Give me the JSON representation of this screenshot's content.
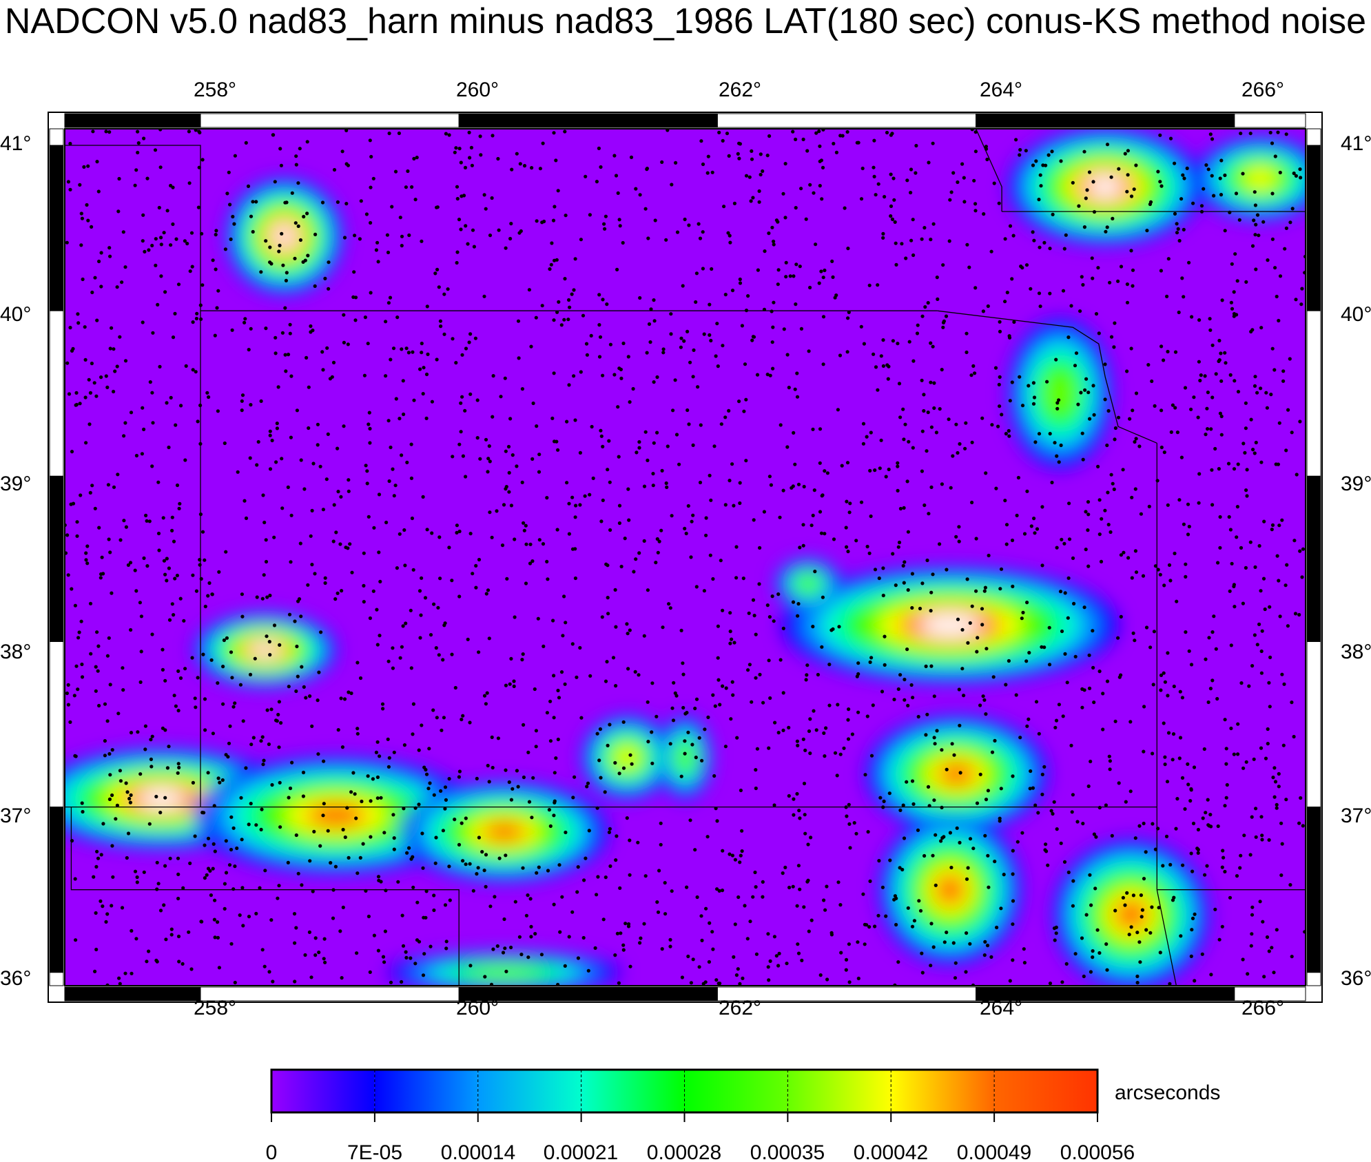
{
  "title": "NADCON v5.0 nad83_harn minus nad83_1986 LAT(180 sec) conus-KS method noise",
  "map": {
    "lon_range": [
      256.95,
      266.55
    ],
    "lat_range": [
      35.92,
      41.1
    ],
    "lon_ticks": [
      "258°",
      "260°",
      "262°",
      "264°",
      "266°"
    ],
    "lat_ticks": [
      "41°",
      "40°",
      "39°",
      "38°",
      "37°",
      "36°"
    ],
    "background_color": "#9900ff",
    "hotspots": [
      {
        "lon": 258.65,
        "lat": 40.45,
        "rx": 0.45,
        "ry": 0.35,
        "level": 8
      },
      {
        "lon": 258.5,
        "lat": 37.95,
        "rx": 0.55,
        "ry": 0.22,
        "level": 8
      },
      {
        "lon": 257.7,
        "lat": 37.05,
        "rx": 1.0,
        "ry": 0.3,
        "level": 8
      },
      {
        "lon": 259.05,
        "lat": 36.95,
        "rx": 1.1,
        "ry": 0.35,
        "level": 7
      },
      {
        "lon": 260.35,
        "lat": 36.85,
        "rx": 0.8,
        "ry": 0.3,
        "level": 7
      },
      {
        "lon": 261.3,
        "lat": 37.3,
        "rx": 0.35,
        "ry": 0.25,
        "level": 6
      },
      {
        "lon": 261.75,
        "lat": 37.3,
        "rx": 0.2,
        "ry": 0.25,
        "level": 5
      },
      {
        "lon": 263.8,
        "lat": 38.1,
        "rx": 1.3,
        "ry": 0.35,
        "level": 8
      },
      {
        "lon": 263.85,
        "lat": 37.2,
        "rx": 0.7,
        "ry": 0.35,
        "level": 7
      },
      {
        "lon": 263.8,
        "lat": 36.5,
        "rx": 0.55,
        "ry": 0.45,
        "level": 7
      },
      {
        "lon": 265.2,
        "lat": 36.35,
        "rx": 0.6,
        "ry": 0.45,
        "level": 7
      },
      {
        "lon": 265.0,
        "lat": 40.75,
        "rx": 0.75,
        "ry": 0.35,
        "level": 8
      },
      {
        "lon": 266.2,
        "lat": 40.8,
        "rx": 0.5,
        "ry": 0.25,
        "level": 6
      },
      {
        "lon": 264.65,
        "lat": 39.5,
        "rx": 0.4,
        "ry": 0.45,
        "level": 5
      },
      {
        "lon": 262.7,
        "lat": 38.35,
        "rx": 0.25,
        "ry": 0.15,
        "level": 5
      },
      {
        "lon": 260.35,
        "lat": 36.0,
        "rx": 0.9,
        "ry": 0.12,
        "level": 5
      }
    ],
    "borders": [
      {
        "name": "Kansas-Colorado",
        "points": [
          [
            258.0,
            40.0
          ],
          [
            263.7,
            40.0
          ]
        ]
      },
      {
        "name": "Kansas-Oklahoma",
        "points": [
          [
            256.95,
            37.0
          ],
          [
            265.4,
            37.0
          ]
        ]
      },
      {
        "name": "Kansas-Missouri",
        "points": [
          [
            265.4,
            36.5
          ],
          [
            265.4,
            39.2
          ]
        ]
      },
      {
        "name": "Missouri-Oklahoma",
        "points": [
          [
            265.4,
            36.5
          ],
          [
            266.55,
            36.5
          ]
        ]
      },
      {
        "name": "Nebraska-Colorado",
        "points": [
          [
            256.95,
            41.0
          ],
          [
            258.0,
            41.0
          ],
          [
            258.0,
            37.0
          ]
        ]
      },
      {
        "name": "Iowa-Missouri",
        "points": [
          [
            264.2,
            40.6
          ],
          [
            266.55,
            40.6
          ]
        ]
      },
      {
        "name": "Missouri River",
        "points": [
          [
            264.2,
            40.6
          ],
          [
            264.2,
            40.75
          ],
          [
            264.0,
            41.1
          ]
        ]
      },
      {
        "name": "Missouri River KS",
        "points": [
          [
            263.7,
            40.0
          ],
          [
            264.75,
            39.9
          ],
          [
            264.95,
            39.8
          ],
          [
            265.0,
            39.6
          ],
          [
            265.1,
            39.3
          ],
          [
            265.4,
            39.2
          ]
        ]
      },
      {
        "name": "Oklahoma panhandle",
        "points": [
          [
            257.0,
            37.0
          ],
          [
            257.0,
            36.5
          ],
          [
            260.0,
            36.5
          ],
          [
            260.0,
            35.92
          ]
        ]
      },
      {
        "name": "Arkansas-Oklahoma",
        "points": [
          [
            265.4,
            36.5
          ],
          [
            265.55,
            35.92
          ]
        ]
      }
    ],
    "station_count": 3000
  },
  "colorbar": {
    "label": "arcseconds",
    "colors": [
      "#9900ff",
      "#0000ff",
      "#0099ff",
      "#00ffcc",
      "#00ff00",
      "#66ff00",
      "#ffff00",
      "#ff6600",
      "#ffffff"
    ],
    "tick_labels": [
      "0",
      "7E-05",
      "0.00014",
      "0.00021",
      "0.00028",
      "0.00035",
      "0.00042",
      "0.00049",
      "0.00056"
    ]
  }
}
